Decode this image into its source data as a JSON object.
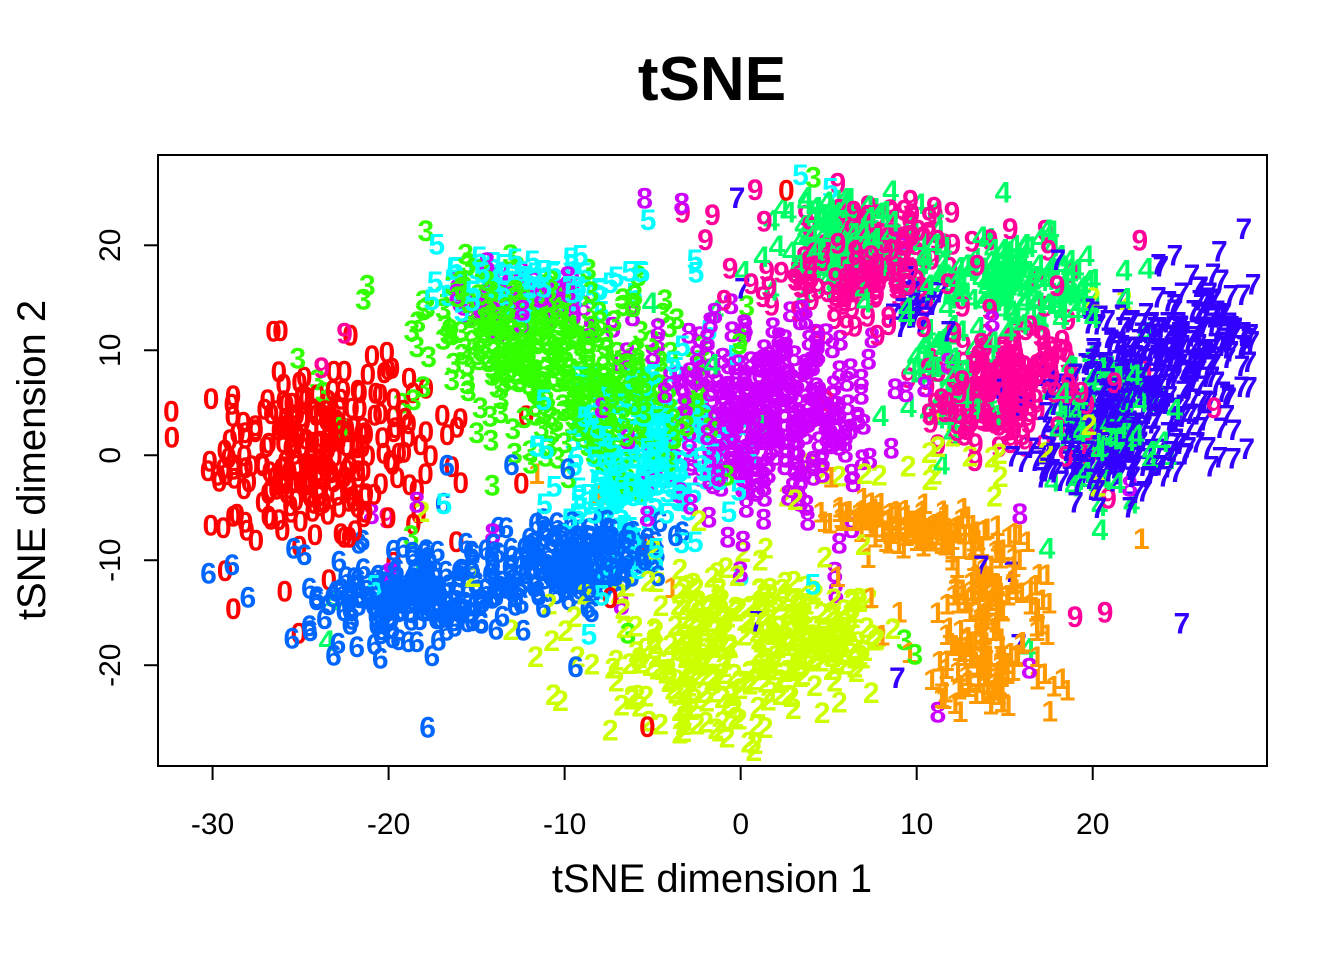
{
  "page": {
    "title": "tSNE"
  },
  "chart_data": {
    "type": "scatter",
    "point_style": "digit-glyphs",
    "title": "tSNE",
    "xlabel": "tSNE dimension 1",
    "ylabel": "tSNE dimension 2",
    "xlim": [
      -33.1,
      29.9
    ],
    "ylim": [
      -29.6,
      28.6
    ],
    "x_ticks": [
      -30,
      -20,
      -10,
      0,
      10,
      20
    ],
    "y_ticks": [
      -20,
      -10,
      0,
      10,
      20
    ],
    "grid": false,
    "legend": "none",
    "digit_colors": {
      "0": "#FF0000",
      "1": "#FF9900",
      "2": "#CCFF00",
      "3": "#33FF00",
      "4": "#00FF66",
      "5": "#00FFFF",
      "6": "#0066FF",
      "7": "#3300FF",
      "8": "#CC00FF",
      "9": "#FF0099"
    },
    "clusters": [
      {
        "digit": "0",
        "color": "#FF0000",
        "stray": 12,
        "blobs": [
          {
            "cx": -23.9,
            "cy": 0.2,
            "sx": 3.2,
            "sy": 3.9,
            "rot": -8,
            "n": 260
          }
        ]
      },
      {
        "digit": "1",
        "color": "#FF9900",
        "stray": 6,
        "blobs": [
          {
            "cx": 9.7,
            "cy": -6.7,
            "sx": 2.6,
            "sy": 1.1,
            "rot": -14,
            "n": 125
          },
          {
            "cx": 14.7,
            "cy": -12.9,
            "sx": 1.3,
            "sy": 2.4,
            "rot": 0,
            "n": 85
          },
          {
            "cx": 13.9,
            "cy": -20.3,
            "sx": 1.7,
            "sy": 2.1,
            "rot": 20,
            "n": 100
          }
        ]
      },
      {
        "digit": "2",
        "color": "#CCFF00",
        "stray": 14,
        "blobs": [
          {
            "cx": -0.9,
            "cy": -18.4,
            "sx": 3.4,
            "sy": 4.4,
            "rot": -18,
            "n": 290
          },
          {
            "cx": 5.4,
            "cy": -17.4,
            "sx": 1.4,
            "sy": 2.2,
            "rot": 0,
            "n": 55
          },
          {
            "cx": 9.0,
            "cy": -0.5,
            "sx": 4.0,
            "sy": 2.5,
            "rot": 0,
            "n": 20
          }
        ]
      },
      {
        "digit": "3",
        "color": "#33FF00",
        "stray": 20,
        "blobs": [
          {
            "cx": -13.4,
            "cy": 12.4,
            "sx": 2.1,
            "sy": 3.0,
            "rot": 0,
            "n": 170
          },
          {
            "cx": -7.8,
            "cy": 5.7,
            "sx": 2.9,
            "sy": 4.1,
            "rot": 10,
            "n": 260
          }
        ]
      },
      {
        "digit": "4",
        "color": "#00FF66",
        "stray": 14,
        "blobs": [
          {
            "cx": 5.3,
            "cy": 20.5,
            "sx": 1.9,
            "sy": 2.3,
            "rot": 0,
            "n": 120
          },
          {
            "cx": 15.3,
            "cy": 16.2,
            "sx": 3.2,
            "sy": 2.3,
            "rot": -12,
            "n": 170
          },
          {
            "cx": 20.7,
            "cy": 3.3,
            "sx": 1.5,
            "sy": 3.2,
            "rot": 0,
            "n": 100
          },
          {
            "cx": 11.9,
            "cy": 7.6,
            "sx": 1.2,
            "sy": 2.6,
            "rot": 0,
            "n": 60
          }
        ]
      },
      {
        "digit": "5",
        "color": "#00FFFF",
        "stray": 16,
        "blobs": [
          {
            "cx": -5.7,
            "cy": -0.7,
            "sx": 2.2,
            "sy": 4.2,
            "rot": -6,
            "n": 230
          },
          {
            "cx": -11.5,
            "cy": 16.5,
            "sx": 2.8,
            "sy": 1.3,
            "rot": 0,
            "n": 80
          }
        ]
      },
      {
        "digit": "6",
        "color": "#0066FF",
        "stray": 12,
        "blobs": [
          {
            "cx": -18.2,
            "cy": -13.8,
            "sx": 2.9,
            "sy": 2.0,
            "rot": 18,
            "n": 200
          },
          {
            "cx": -9.6,
            "cy": -10.2,
            "sx": 2.7,
            "sy": 1.9,
            "rot": 18,
            "n": 200
          }
        ]
      },
      {
        "digit": "7",
        "color": "#3300FF",
        "stray": 12,
        "blobs": [
          {
            "cx": 23.5,
            "cy": 7.5,
            "sx": 2.8,
            "sy": 5.2,
            "rot": -25,
            "n": 420
          },
          {
            "cx": 20.6,
            "cy": -0.5,
            "sx": 2.0,
            "sy": 1.9,
            "rot": -20,
            "n": 95
          },
          {
            "cx": 10.4,
            "cy": 14.3,
            "sx": 0.9,
            "sy": 1.2,
            "rot": 0,
            "n": 22
          }
        ]
      },
      {
        "digit": "8",
        "color": "#CC00FF",
        "stray": 18,
        "blobs": [
          {
            "cx": 1.4,
            "cy": 3.8,
            "sx": 3.0,
            "sy": 4.2,
            "rot": 0,
            "n": 330
          },
          {
            "cx": -12.5,
            "cy": 15.2,
            "sx": 2.2,
            "sy": 1.5,
            "rot": 0,
            "n": 55
          }
        ]
      },
      {
        "digit": "9",
        "color": "#FF0099",
        "stray": 20,
        "blobs": [
          {
            "cx": 7.0,
            "cy": 18.4,
            "sx": 2.2,
            "sy": 2.9,
            "rot": -15,
            "n": 185
          },
          {
            "cx": 15.0,
            "cy": 6.2,
            "sx": 1.9,
            "sy": 3.2,
            "rot": -10,
            "n": 200
          }
        ]
      }
    ],
    "outliers": [
      [
        0,
        -20.1,
        9.8
      ],
      [
        0,
        -23.4,
        -11.9
      ],
      [
        0,
        -25.1,
        -17.0
      ],
      [
        0,
        -7.4,
        -13.6
      ],
      [
        0,
        -5.3,
        -25.9
      ],
      [
        0,
        -5.2,
        -8.6
      ],
      [
        0,
        2.6,
        25.2
      ],
      [
        1,
        5.5,
        -11.6
      ],
      [
        1,
        7.4,
        -13.6
      ],
      [
        1,
        9.0,
        -15.0
      ],
      [
        2,
        -18.1,
        -5.4
      ],
      [
        2,
        19.8,
        2.9
      ],
      [
        2,
        20.7,
        1.4
      ],
      [
        2,
        21.8,
        14.8
      ],
      [
        2,
        20.3,
        -3.0
      ],
      [
        2,
        20.0,
        15.0
      ],
      [
        3,
        -18.4,
        10.3
      ],
      [
        3,
        -6.0,
        15.2
      ],
      [
        3,
        -4.3,
        14.8
      ],
      [
        3,
        -2.3,
        6.2
      ],
      [
        3,
        -6.4,
        -17.0
      ],
      [
        3,
        9.9,
        -19.0
      ],
      [
        3,
        9.3,
        -17.6
      ],
      [
        4,
        -23.1,
        -13.8
      ],
      [
        4,
        -23.5,
        -17.7
      ],
      [
        4,
        -18.1,
        -10.7
      ],
      [
        4,
        20.4,
        -7.1
      ],
      [
        4,
        17.4,
        -8.9
      ],
      [
        4,
        16.3,
        -18.4
      ],
      [
        5,
        3.4,
        26.7
      ],
      [
        5,
        -2.6,
        18.6
      ],
      [
        5,
        -1.8,
        11.9
      ],
      [
        5,
        -0.3,
        9.5
      ],
      [
        5,
        -20.8,
        -12.4
      ],
      [
        5,
        5.1,
        25.4
      ],
      [
        6,
        -24.8,
        -9.5
      ],
      [
        6,
        -24.5,
        -12.7
      ],
      [
        6,
        -24.1,
        -13.8
      ],
      [
        6,
        -21.5,
        -8.1
      ],
      [
        6,
        -16.7,
        -1.0
      ],
      [
        6,
        -16.9,
        -4.6
      ],
      [
        7,
        -0.2,
        24.5
      ],
      [
        7,
        0.1,
        15.9
      ],
      [
        7,
        15.4,
        -11.1
      ],
      [
        7,
        22.1,
        -5.0
      ],
      [
        7,
        27.3,
        2.6
      ],
      [
        7,
        8.9,
        -21.2
      ],
      [
        8,
        -19.9,
        -11.2
      ],
      [
        8,
        -18.4,
        -4.5
      ],
      [
        8,
        22.1,
        -3.0
      ],
      [
        8,
        11.2,
        -24.5
      ],
      [
        8,
        16.4,
        -20.3
      ],
      [
        8,
        0.2,
        12.4
      ],
      [
        8,
        -5.2,
        1.4
      ],
      [
        9,
        -3.3,
        23.1
      ],
      [
        9,
        -1.6,
        22.9
      ],
      [
        9,
        -2.0,
        20.5
      ],
      [
        9,
        -0.6,
        17.8
      ],
      [
        9,
        -22.5,
        11.6
      ],
      [
        9,
        -23.8,
        8.3
      ],
      [
        9,
        -20.1,
        -6.0
      ],
      [
        9,
        19.8,
        0.0
      ],
      [
        9,
        20.9,
        -4.1
      ],
      [
        9,
        26.9,
        4.5
      ],
      [
        9,
        20.7,
        -15.0
      ],
      [
        9,
        19.0,
        -15.4
      ],
      [
        9,
        9.3,
        23.3
      ],
      [
        9,
        11.0,
        23.6
      ],
      [
        9,
        17.3,
        21.4
      ],
      [
        9,
        -0.1,
        3.3
      ],
      [
        9,
        16.9,
        16.9
      ],
      [
        9,
        18.8,
        17.4
      ],
      [
        9,
        17.5,
        19.5
      ]
    ]
  }
}
